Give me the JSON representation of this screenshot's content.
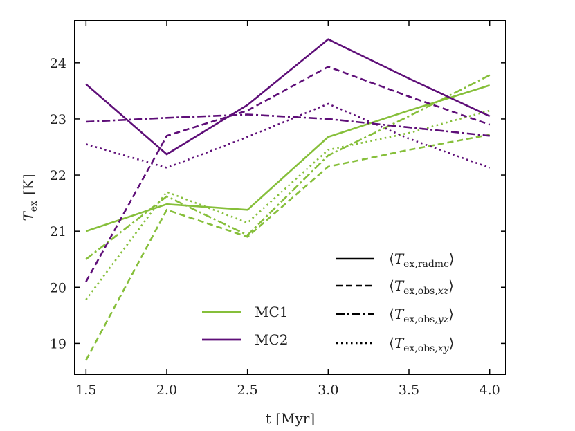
{
  "chart_data": {
    "type": "line",
    "xlabel": "t [Myr]",
    "ylabel_main": "T",
    "ylabel_sub": "ex",
    "ylabel_unit": "[K]",
    "xlim": [
      1.43,
      4.1
    ],
    "ylim": [
      18.45,
      24.75
    ],
    "x_ticks": [
      1.5,
      2.0,
      2.5,
      3.0,
      3.5,
      4.0
    ],
    "x_tick_labels": [
      "1.5",
      "2.0",
      "2.5",
      "3.0",
      "3.5",
      "4.0"
    ],
    "y_ticks": [
      19,
      20,
      21,
      22,
      23,
      24
    ],
    "y_tick_labels": [
      "19",
      "20",
      "21",
      "22",
      "23",
      "24"
    ],
    "grid": false,
    "x": [
      1.5,
      2.0,
      2.5,
      3.0,
      3.5,
      4.0
    ],
    "colors": {
      "MC1": "#86bf3a",
      "MC2": "#5e0e78"
    },
    "clouds": [
      "MC1",
      "MC2"
    ],
    "estimators": [
      {
        "id": "radmc",
        "dash": "solid",
        "label_main": "T",
        "label_sub": "ex,radmc"
      },
      {
        "id": "obs_xz",
        "dash": "dashed",
        "label_main": "T",
        "label_sub": "ex,obs,",
        "label_sub_italic": "xz"
      },
      {
        "id": "obs_yz",
        "dash": "dashdot",
        "label_main": "T",
        "label_sub": "ex,obs,",
        "label_sub_italic": "yz"
      },
      {
        "id": "obs_xy",
        "dash": "dotted",
        "label_main": "T",
        "label_sub": "ex,obs,",
        "label_sub_italic": "xy"
      }
    ],
    "series": [
      {
        "cloud": "MC1",
        "estimator": "radmc",
        "values": [
          21.0,
          21.48,
          21.38,
          22.68,
          23.15,
          23.6
        ]
      },
      {
        "cloud": "MC1",
        "estimator": "obs_xz",
        "values": [
          18.7,
          21.38,
          20.9,
          22.15,
          22.45,
          22.72
        ]
      },
      {
        "cloud": "MC1",
        "estimator": "obs_yz",
        "values": [
          20.5,
          21.62,
          20.93,
          22.35,
          23.05,
          23.78
        ]
      },
      {
        "cloud": "MC1",
        "estimator": "obs_xy",
        "values": [
          19.78,
          21.7,
          21.15,
          22.45,
          22.75,
          23.15
        ]
      },
      {
        "cloud": "MC2",
        "estimator": "radmc",
        "values": [
          23.62,
          22.37,
          23.25,
          24.42,
          23.72,
          23.05
        ]
      },
      {
        "cloud": "MC2",
        "estimator": "obs_xz",
        "values": [
          20.1,
          22.7,
          23.15,
          23.93,
          23.4,
          22.9
        ]
      },
      {
        "cloud": "MC2",
        "estimator": "obs_yz",
        "values": [
          22.95,
          23.02,
          23.08,
          23.0,
          22.85,
          22.7
        ]
      },
      {
        "cloud": "MC2",
        "estimator": "obs_xy",
        "values": [
          22.55,
          22.13,
          22.68,
          23.27,
          22.65,
          22.13
        ]
      }
    ],
    "legend_clouds": {
      "placement": "lower-center",
      "entries": [
        "MC1",
        "MC2"
      ]
    },
    "legend_styles": {
      "placement": "lower-right"
    }
  }
}
